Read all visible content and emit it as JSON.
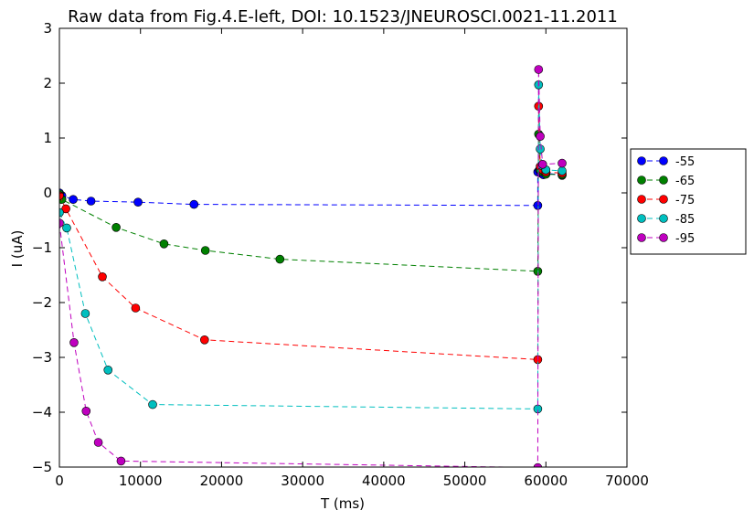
{
  "chart_data": {
    "type": "line",
    "title": "Raw data from Fig.4.E-left, DOI: 10.1523/JNEUROSCI.0021-11.2011",
    "xlabel": "T (ms)",
    "ylabel": "I (uA)",
    "xlim": [
      0,
      70000
    ],
    "ylim": [
      -5,
      3
    ],
    "xticks": [
      0,
      10000,
      20000,
      30000,
      40000,
      50000,
      60000,
      70000
    ],
    "yticks": [
      -5,
      -4,
      -3,
      -2,
      -1,
      0,
      1,
      2,
      3
    ],
    "xtick_labels": [
      "0",
      "10000",
      "20000",
      "30000",
      "40000",
      "50000",
      "60000",
      "70000"
    ],
    "ytick_labels": [
      "−5",
      "−4",
      "−3",
      "−2",
      "−1",
      "0",
      "1",
      "2",
      "3"
    ],
    "grid": false,
    "legend_position": "outside-right",
    "series": [
      {
        "name": "-55",
        "color": "#0000ff",
        "points": [
          [
            0,
            0.0
          ],
          [
            300,
            -0.05
          ],
          [
            1700,
            -0.12
          ],
          [
            3900,
            -0.15
          ],
          [
            9700,
            -0.17
          ],
          [
            16600,
            -0.21
          ],
          [
            59000,
            -0.23
          ],
          [
            59000,
            0.38
          ],
          [
            59200,
            0.42
          ],
          [
            59400,
            0.36
          ],
          [
            59700,
            0.33
          ],
          [
            60000,
            0.36
          ],
          [
            62000,
            0.32
          ]
        ]
      },
      {
        "name": "-65",
        "color": "#008000",
        "points": [
          [
            0,
            -0.02
          ],
          [
            300,
            -0.12
          ],
          [
            7000,
            -0.63
          ],
          [
            12900,
            -0.93
          ],
          [
            18000,
            -1.05
          ],
          [
            27200,
            -1.21
          ],
          [
            59000,
            -1.43
          ],
          [
            59100,
            1.07
          ],
          [
            59300,
            0.42
          ],
          [
            59600,
            0.38
          ],
          [
            60000,
            0.34
          ],
          [
            62000,
            0.33
          ]
        ]
      },
      {
        "name": "-75",
        "color": "#ff0000",
        "points": [
          [
            0,
            -0.05
          ],
          [
            800,
            -0.29
          ],
          [
            5300,
            -1.53
          ],
          [
            9400,
            -2.1
          ],
          [
            17900,
            -2.68
          ],
          [
            59000,
            -3.04
          ],
          [
            59100,
            1.58
          ],
          [
            59300,
            0.48
          ],
          [
            59600,
            0.42
          ],
          [
            60000,
            0.38
          ],
          [
            62000,
            0.36
          ]
        ]
      },
      {
        "name": "-85",
        "color": "#00bfbf",
        "points": [
          [
            0,
            -0.36
          ],
          [
            900,
            -0.64
          ],
          [
            3200,
            -2.2
          ],
          [
            6000,
            -3.23
          ],
          [
            11500,
            -3.86
          ],
          [
            59000,
            -3.94
          ],
          [
            59100,
            1.97
          ],
          [
            59300,
            0.8
          ],
          [
            59500,
            0.5
          ],
          [
            60000,
            0.42
          ],
          [
            62000,
            0.4
          ]
        ]
      },
      {
        "name": "-95",
        "color": "#bf00bf",
        "points": [
          [
            0,
            -0.55
          ],
          [
            1800,
            -2.73
          ],
          [
            3300,
            -3.98
          ],
          [
            4800,
            -4.55
          ],
          [
            7600,
            -4.89
          ],
          [
            59000,
            -5.01
          ],
          [
            59100,
            2.25
          ],
          [
            59300,
            1.03
          ],
          [
            59600,
            0.52
          ],
          [
            62000,
            0.54
          ]
        ]
      }
    ]
  }
}
